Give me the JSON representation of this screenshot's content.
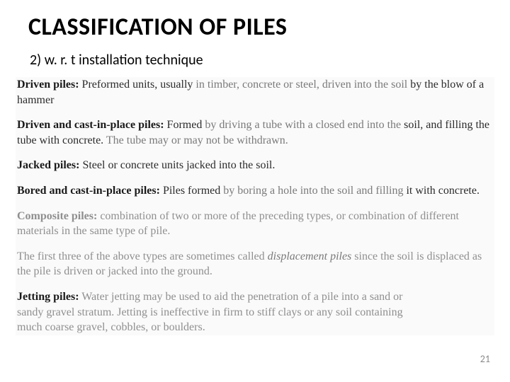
{
  "title": "CLASSIFICATION OF PILES",
  "subtitle": "2) w. r. t installation technique",
  "entries": {
    "driven": {
      "term": "Driven piles:",
      "lead": " Preformed units, usually ",
      "mid": "in timber, concrete or steel, driven into the soil",
      "tail": " by the blow of a hammer"
    },
    "driven_cast": {
      "term": "Driven and cast-in-place piles:",
      "lead": " Formed ",
      "mid": "by driving a tube with a closed end into the",
      "tail_a": " soil, and filling the tube with concrete. ",
      "tail_b": "The tube may or may not be withdrawn."
    },
    "jacked": {
      "term": "Jacked piles:",
      "body": " Steel or concrete units jacked into the soil."
    },
    "bored": {
      "term": "Bored and cast-in-place piles:",
      "lead": " Piles formed ",
      "mid": "by boring a hole into the soil and filling",
      "tail": " it with concrete."
    },
    "composite": {
      "term": "Composite piles:",
      "body": " combination of two or more of the preceding types, or combination of different materials in the same type of pile."
    },
    "displacement": {
      "pre": "The first three of the above types are sometimes called ",
      "ital": "displacement piles",
      "post": " since the soil is displaced as the pile is driven or jacked into the ground."
    },
    "jetting": {
      "term": "Jetting piles:",
      "lead": " Water jetting may be used to aid the penetration of a pile into a sand or",
      "line2": " sandy gravel stratum. Jetting is ineffective in firm to stiff clays or any soil containing",
      "line3": " much coarse gravel, cobbles, or boulders."
    }
  },
  "page_number": "21",
  "colors": {
    "text": "#000000",
    "scan_text": "#2b2b2b",
    "faded": "#7a7a7a",
    "background": "#ffffff",
    "scan_bg": "#fafafa"
  },
  "fonts": {
    "title_size_pt": 26,
    "subtitle_size_pt": 15,
    "body_size_pt": 12
  }
}
